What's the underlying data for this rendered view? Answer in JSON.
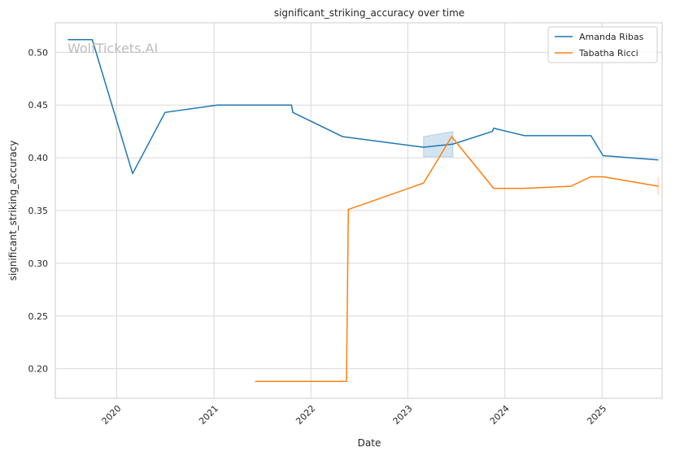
{
  "chart_data": {
    "type": "line",
    "title": "significant_striking_accuracy over time",
    "xlabel": "Date",
    "ylabel": "significant_striking_accuracy",
    "watermark": "WolfTickets.AI",
    "xlim": [
      "2019-05-15",
      "2025-08-15"
    ],
    "ylim": [
      0.172,
      0.528
    ],
    "x_ticks": [
      "2020-01-01",
      "2021-01-01",
      "2022-01-01",
      "2023-01-01",
      "2024-01-01",
      "2025-01-01"
    ],
    "x_tick_labels": [
      "2020",
      "2021",
      "2022",
      "2023",
      "2024",
      "2025"
    ],
    "y_ticks": [
      0.2,
      0.25,
      0.3,
      0.35,
      0.4,
      0.45,
      0.5
    ],
    "y_tick_labels": [
      "0.20",
      "0.25",
      "0.30",
      "0.35",
      "0.40",
      "0.45",
      "0.50"
    ],
    "grid": true,
    "legend_position": "top-right",
    "series": [
      {
        "name": "Amanda Ribas",
        "color": "#1f77b4",
        "points": [
          [
            "2019-07-01",
            0.512
          ],
          [
            "2019-10-01",
            0.512
          ],
          [
            "2020-03-01",
            0.385
          ],
          [
            "2020-07-01",
            0.443
          ],
          [
            "2021-01-15",
            0.45
          ],
          [
            "2021-10-20",
            0.45
          ],
          [
            "2021-10-25",
            0.443
          ],
          [
            "2022-05-01",
            0.42
          ],
          [
            "2023-03-01",
            0.41
          ],
          [
            "2023-06-20",
            0.413
          ],
          [
            "2023-11-15",
            0.425
          ],
          [
            "2023-11-20",
            0.428
          ],
          [
            "2024-03-15",
            0.421
          ],
          [
            "2024-11-20",
            0.421
          ],
          [
            "2025-01-05",
            0.402
          ],
          [
            "2025-08-01",
            0.398
          ]
        ],
        "band": [
          [
            "2023-03-01",
            0.401,
            0.42
          ],
          [
            "2023-06-20",
            0.401,
            0.425
          ]
        ]
      },
      {
        "name": "Tabatha Ricci",
        "color": "#ff7f0e",
        "points": [
          [
            "2021-06-05",
            0.188
          ],
          [
            "2022-05-15",
            0.188
          ],
          [
            "2022-05-22",
            0.351
          ],
          [
            "2023-03-01",
            0.376
          ],
          [
            "2023-06-15",
            0.42
          ],
          [
            "2023-11-20",
            0.371
          ],
          [
            "2024-03-10",
            0.371
          ],
          [
            "2024-09-05",
            0.373
          ],
          [
            "2024-11-20",
            0.382
          ],
          [
            "2025-01-05",
            0.382
          ],
          [
            "2025-08-01",
            0.373
          ]
        ],
        "band": [
          [
            "2025-08-01",
            0.365,
            0.382
          ]
        ]
      }
    ]
  }
}
